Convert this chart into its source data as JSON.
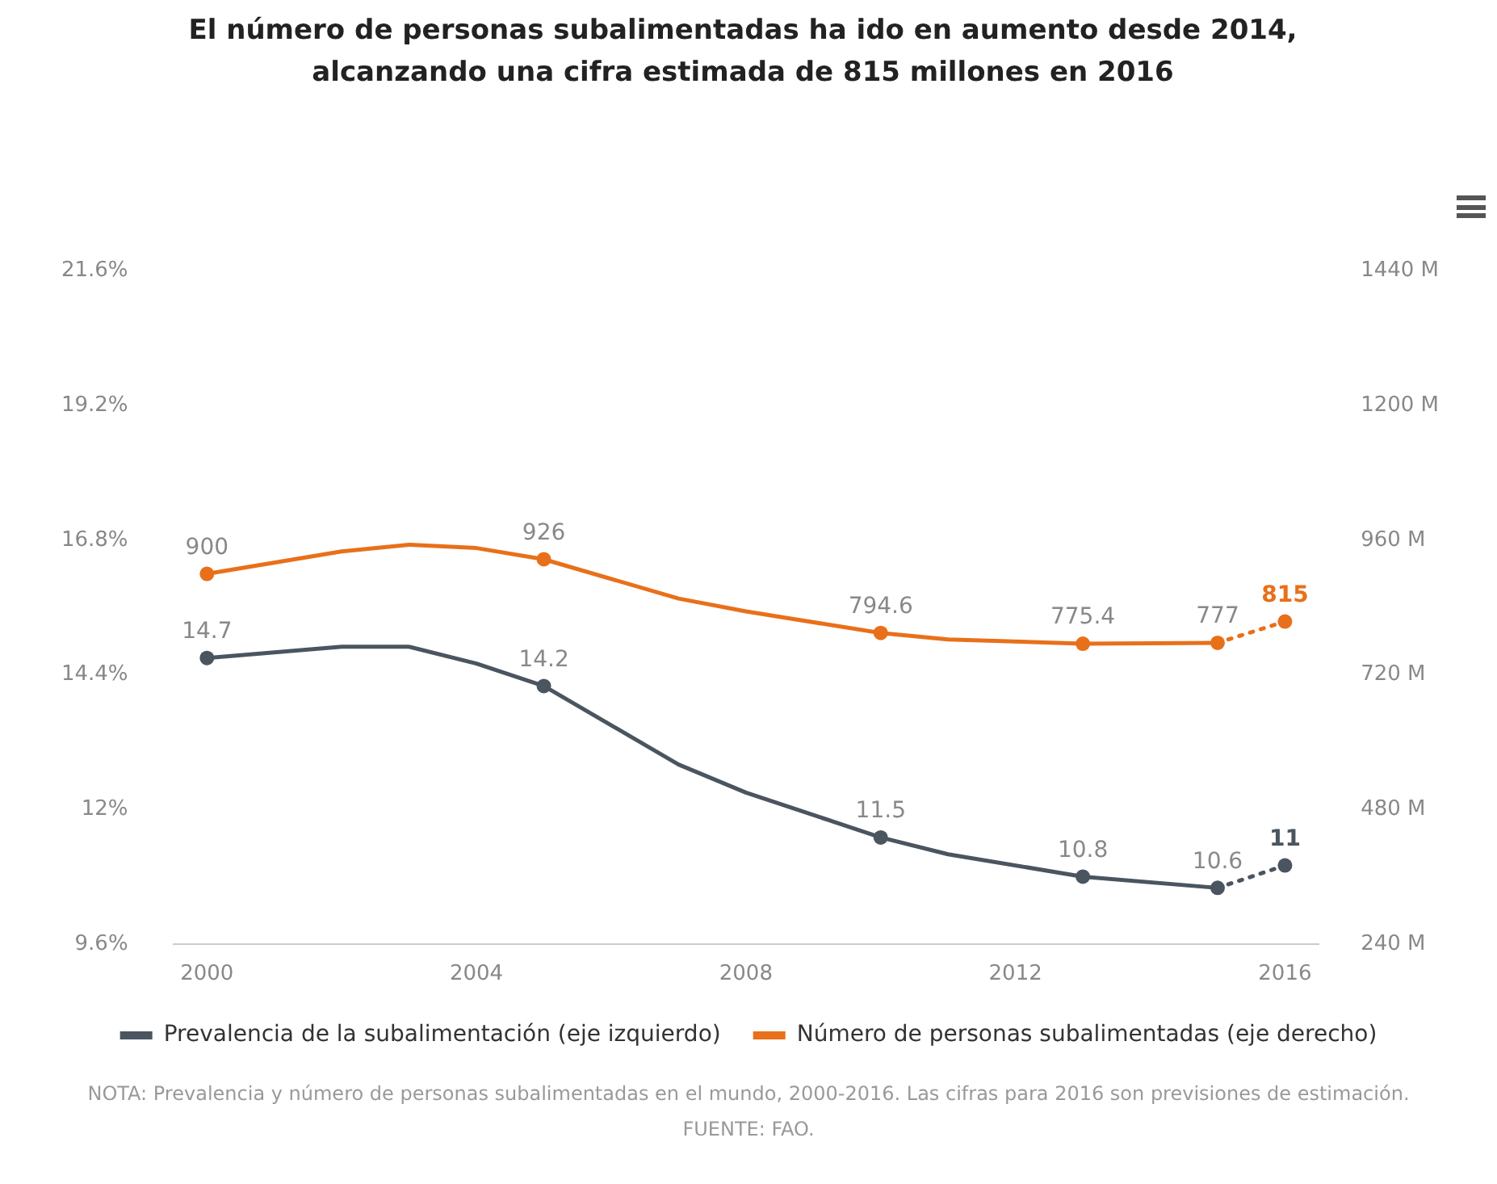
{
  "chart_data": {
    "type": "line",
    "title": "El número de personas subalimentadas ha ido en aumento desde 2014, alcanzando una cifra estimada de 815 millones en 2016",
    "xlim": [
      1999.5,
      2016.5
    ],
    "xticks": [
      2000,
      2004,
      2008,
      2012,
      2016
    ],
    "ylim": [
      9.6,
      21.6
    ],
    "yticks": [
      {
        "value": 9.6,
        "label": "9.6%"
      },
      {
        "value": 12,
        "label": "12%"
      },
      {
        "value": 14.4,
        "label": "14.4%"
      },
      {
        "value": 16.8,
        "label": "16.8%"
      },
      {
        "value": 19.2,
        "label": "19.2%"
      },
      {
        "value": 21.6,
        "label": "21.6%"
      }
    ],
    "y2lim": [
      240,
      1440
    ],
    "y2ticks": [
      {
        "value": 240,
        "label": "240 M"
      },
      {
        "value": 480,
        "label": "480 M"
      },
      {
        "value": 720,
        "label": "720 M"
      },
      {
        "value": 960,
        "label": "960 M"
      },
      {
        "value": 1200,
        "label": "1200 M"
      },
      {
        "value": 1440,
        "label": "1440 M"
      }
    ],
    "grid": false,
    "legend": "bottom",
    "series": [
      {
        "name": "Prevalencia de la subalimentación (eje izquierdo)",
        "color": "#4a5560",
        "line_style": "solid",
        "x": [
          2000,
          2002,
          2003,
          2004,
          2005,
          2007,
          2008,
          2010,
          2011,
          2013,
          2015
        ],
        "values": [
          14.7,
          14.9,
          14.9,
          14.6,
          14.2,
          12.8,
          12.3,
          11.5,
          11.2,
          10.8,
          10.6
        ],
        "value_labels": [
          "14.7",
          null,
          null,
          null,
          "14.2",
          null,
          null,
          "11.5",
          null,
          "10.8",
          "10.6"
        ]
      },
      {
        "color": "#4a5560",
        "line_style": "dotted",
        "x": [
          2015,
          2016
        ],
        "values": [
          10.6,
          11
        ],
        "value_labels": [
          null,
          "11"
        ]
      },
      {
        "name": "Número de personas subalimentadas (eje derecho)",
        "color": "#e8701a",
        "axis": "y2",
        "line_style": "solid",
        "x": [
          2000,
          2002,
          2003,
          2004,
          2005,
          2007,
          2008,
          2010,
          2011,
          2013,
          2015
        ],
        "values": [
          900,
          940,
          952,
          946,
          926,
          856,
          833,
          794.6,
          783,
          775.4,
          777
        ],
        "value_labels": [
          "900",
          null,
          null,
          null,
          "926",
          null,
          null,
          "794.6",
          null,
          "775.4",
          "777"
        ]
      },
      {
        "color": "#e8701a",
        "axis": "y2",
        "line_style": "dotted",
        "x": [
          2015,
          2016
        ],
        "values": [
          777,
          815
        ],
        "value_labels": [
          null,
          "815"
        ]
      }
    ],
    "annotations": [
      "NOTA: Prevalencia y número de personas subalimentadas en el mundo, 2000-2016. Las cifras para 2016 son previsiones de estimación.",
      "FUENTE: FAO."
    ]
  }
}
